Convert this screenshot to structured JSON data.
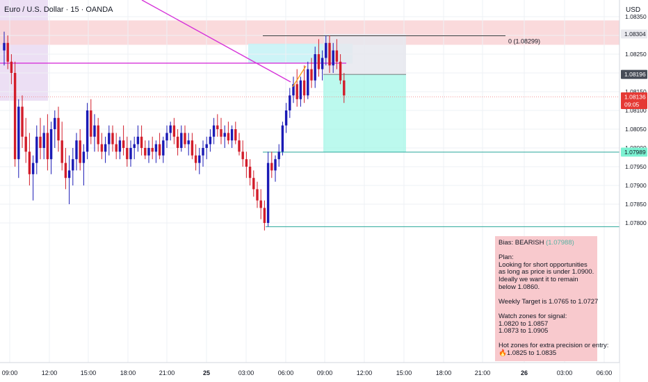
{
  "header": {
    "symbol_title": "Euro / U.S. Dollar · 15 · OANDA",
    "currency": "USD"
  },
  "chart_data": {
    "type": "candlestick",
    "symbol": "Euro / U.S. Dollar",
    "interval": "15",
    "source": "OANDA",
    "ylim": [
      1.0776,
      1.0863
    ],
    "y_ticks": [
      "1.08350",
      "1.08300",
      "1.08250",
      "1.08200",
      "1.08150",
      "1.08100",
      "1.08050",
      "1.08000",
      "1.07950",
      "1.07900",
      "1.07850",
      "1.07800"
    ],
    "x_ticks": [
      "09:00",
      "12:00",
      "15:00",
      "18:00",
      "21:00",
      "25",
      "03:00",
      "06:00",
      "09:00",
      "12:00",
      "15:00",
      "18:00",
      "21:00",
      "26",
      "03:00",
      "06:00"
    ],
    "price_labels": [
      {
        "value": "1.08304",
        "style": "level"
      },
      {
        "value": "1.08196",
        "style": "level"
      },
      {
        "value": "1.08136",
        "style": "last",
        "countdown": "09:05"
      },
      {
        "value": "1.07989",
        "style": "target"
      }
    ],
    "levels": {
      "fib_zero_label": "0 (1.08299)",
      "fib_zero": 1.08299,
      "last_price": 1.08136,
      "entry": 1.08196,
      "stop": 1.08304,
      "target": 1.07989,
      "low_line": 1.0779,
      "magenta_line": 1.08226,
      "red_zone": [
        1.08275,
        1.0834
      ],
      "cyan_zone": [
        1.08225,
        1.08278
      ]
    },
    "candles": [
      [
        1.0826,
        1.0831,
        1.0822,
        1.0828
      ],
      [
        1.0828,
        1.083,
        1.0821,
        1.0823
      ],
      [
        1.0823,
        1.0825,
        1.0817,
        1.082
      ],
      [
        1.082,
        1.0823,
        1.0795,
        1.0797
      ],
      [
        1.0797,
        1.0813,
        1.0792,
        1.0811
      ],
      [
        1.0811,
        1.0814,
        1.08,
        1.0803
      ],
      [
        1.0803,
        1.0808,
        1.0796,
        1.0799
      ],
      [
        1.0799,
        1.0804,
        1.079,
        1.0793
      ],
      [
        1.0793,
        1.0798,
        1.0786,
        1.0796
      ],
      [
        1.0796,
        1.0806,
        1.0793,
        1.0803
      ],
      [
        1.0803,
        1.0808,
        1.0797,
        1.08
      ],
      [
        1.08,
        1.0806,
        1.0797,
        1.0804
      ],
      [
        1.0804,
        1.0809,
        1.0794,
        1.0797
      ],
      [
        1.0797,
        1.0807,
        1.0793,
        1.0805
      ],
      [
        1.0805,
        1.081,
        1.08,
        1.0808
      ],
      [
        1.0808,
        1.0811,
        1.0799,
        1.0802
      ],
      [
        1.0802,
        1.0807,
        1.0794,
        1.0796
      ],
      [
        1.0796,
        1.08,
        1.0789,
        1.0792
      ],
      [
        1.0792,
        1.0798,
        1.0785,
        1.0794
      ],
      [
        1.0794,
        1.08,
        1.079,
        1.0797
      ],
      [
        1.0797,
        1.0804,
        1.0794,
        1.0802
      ],
      [
        1.0802,
        1.0805,
        1.0794,
        1.0796
      ],
      [
        1.0796,
        1.0801,
        1.079,
        1.0799
      ],
      [
        1.0799,
        1.0812,
        1.0797,
        1.081
      ],
      [
        1.081,
        1.0813,
        1.0801,
        1.0803
      ],
      [
        1.0803,
        1.0809,
        1.0799,
        1.0806
      ],
      [
        1.0806,
        1.0808,
        1.0799,
        1.0801
      ],
      [
        1.0801,
        1.0804,
        1.0797,
        1.0799
      ],
      [
        1.0799,
        1.0803,
        1.0796,
        1.0801
      ],
      [
        1.0801,
        1.0806,
        1.0798,
        1.0804
      ],
      [
        1.0804,
        1.0806,
        1.0799,
        1.0801
      ],
      [
        1.0801,
        1.0804,
        1.0797,
        1.0799
      ],
      [
        1.0799,
        1.0803,
        1.0797,
        1.0802
      ],
      [
        1.0802,
        1.0806,
        1.0798,
        1.08
      ],
      [
        1.08,
        1.0803,
        1.0795,
        1.0797
      ],
      [
        1.0797,
        1.0802,
        1.0795,
        1.08
      ],
      [
        1.08,
        1.0803,
        1.0797,
        1.0801
      ],
      [
        1.0801,
        1.0806,
        1.0799,
        1.0803
      ],
      [
        1.0803,
        1.0806,
        1.0798,
        1.08
      ],
      [
        1.08,
        1.0802,
        1.0797,
        1.0798
      ],
      [
        1.0798,
        1.0802,
        1.0796,
        1.08
      ],
      [
        1.08,
        1.0803,
        1.0797,
        1.0799
      ],
      [
        1.0799,
        1.0802,
        1.0796,
        1.0801
      ],
      [
        1.0801,
        1.0804,
        1.0797,
        1.0798
      ],
      [
        1.0798,
        1.0803,
        1.0796,
        1.0802
      ],
      [
        1.0802,
        1.0806,
        1.08,
        1.0804
      ],
      [
        1.0804,
        1.0807,
        1.0802,
        1.0806
      ],
      [
        1.0806,
        1.0808,
        1.0801,
        1.0803
      ],
      [
        1.0803,
        1.0805,
        1.0798,
        1.08
      ],
      [
        1.08,
        1.0806,
        1.0799,
        1.0804
      ],
      [
        1.0804,
        1.0806,
        1.08,
        1.0801
      ],
      [
        1.0801,
        1.0804,
        1.0798,
        1.0802
      ],
      [
        1.0802,
        1.0804,
        1.0797,
        1.0798
      ],
      [
        1.0798,
        1.0801,
        1.0794,
        1.0796
      ],
      [
        1.0796,
        1.08,
        1.0793,
        1.0798
      ],
      [
        1.0798,
        1.0802,
        1.0795,
        1.08
      ],
      [
        1.08,
        1.0803,
        1.0797,
        1.0801
      ],
      [
        1.0801,
        1.0805,
        1.0799,
        1.0803
      ],
      [
        1.0803,
        1.0808,
        1.0801,
        1.0806
      ],
      [
        1.0806,
        1.0809,
        1.0803,
        1.0805
      ],
      [
        1.0805,
        1.0808,
        1.0801,
        1.0803
      ],
      [
        1.0803,
        1.0806,
        1.08,
        1.0804
      ],
      [
        1.0804,
        1.0807,
        1.0801,
        1.0802
      ],
      [
        1.0802,
        1.0806,
        1.08,
        1.0805
      ],
      [
        1.0805,
        1.0807,
        1.0801,
        1.0802
      ],
      [
        1.0802,
        1.0804,
        1.0798,
        1.0799
      ],
      [
        1.0799,
        1.0802,
        1.0795,
        1.0797
      ],
      [
        1.0797,
        1.0799,
        1.0792,
        1.0795
      ],
      [
        1.0795,
        1.0797,
        1.079,
        1.0792
      ],
      [
        1.0792,
        1.0794,
        1.0787,
        1.0789
      ],
      [
        1.0789,
        1.0791,
        1.0784,
        1.0786
      ],
      [
        1.0786,
        1.0789,
        1.0781,
        1.0784
      ],
      [
        1.0784,
        1.0786,
        1.0778,
        1.078
      ],
      [
        1.078,
        1.0799,
        1.0779,
        1.0796
      ],
      [
        1.0796,
        1.0799,
        1.0792,
        1.0794
      ],
      [
        1.0794,
        1.0798,
        1.0791,
        1.0797
      ],
      [
        1.0797,
        1.0801,
        1.0795,
        1.0799
      ],
      [
        1.0799,
        1.0807,
        1.0798,
        1.0806
      ],
      [
        1.0806,
        1.0812,
        1.0804,
        1.081
      ],
      [
        1.081,
        1.0816,
        1.0808,
        1.0814
      ],
      [
        1.0814,
        1.0819,
        1.0812,
        1.0817
      ],
      [
        1.0817,
        1.0821,
        1.0811,
        1.0813
      ],
      [
        1.0813,
        1.0819,
        1.0811,
        1.0818
      ],
      [
        1.0818,
        1.0822,
        1.0812,
        1.0814
      ],
      [
        1.0814,
        1.0823,
        1.0813,
        1.0821
      ],
      [
        1.0821,
        1.0824,
        1.0816,
        1.0818
      ],
      [
        1.0818,
        1.0827,
        1.0816,
        1.0825
      ],
      [
        1.0825,
        1.0829,
        1.0819,
        1.0821
      ],
      [
        1.0821,
        1.0826,
        1.0818,
        1.0824
      ],
      [
        1.0824,
        1.083,
        1.0822,
        1.0828
      ],
      [
        1.0828,
        1.083,
        1.082,
        1.0822
      ],
      [
        1.0822,
        1.0828,
        1.082,
        1.0826
      ],
      [
        1.0826,
        1.0829,
        1.0821,
        1.0823
      ],
      [
        1.0823,
        1.0825,
        1.0817,
        1.0818
      ],
      [
        1.0818,
        1.082,
        1.0812,
        1.0814
      ]
    ]
  },
  "note": {
    "lines": [
      {
        "text": "Bias: BEARISH",
        "ghost": "(1.07988)"
      },
      {
        "text": ""
      },
      {
        "text": "Plan:"
      },
      {
        "text": "Looking for short opportunities"
      },
      {
        "text": "as long as price is under 1.0900."
      },
      {
        "text": "Ideally we want it to remain"
      },
      {
        "text": "below 1.0860."
      },
      {
        "text": ""
      },
      {
        "text": "Weekly Target is 1.0765 to 1.0727"
      },
      {
        "text": ""
      },
      {
        "text": "Watch zones for signal:"
      },
      {
        "text": "1.0820 to 1.0857"
      },
      {
        "text": "1.0873 to 1.0905"
      },
      {
        "text": ""
      },
      {
        "text": "Hot zones for extra precision or entry:"
      },
      {
        "text": "🔥1.0825 to 1.0835"
      }
    ]
  },
  "colors": {
    "bull": "#1a1ab5",
    "bear": "#d21d2a",
    "axis_text": "#131722",
    "grid": "#eef0f4",
    "red_zone": "#f9d3d6",
    "cyan_zone": "#c8f3f6",
    "target_zone": "#a6f7e8",
    "magenta": "#d633d9",
    "orange": "#f7a21b",
    "teal_line": "#26a69a",
    "last_price_tag": "#e53935",
    "target_tag": "#7cf2d2"
  }
}
